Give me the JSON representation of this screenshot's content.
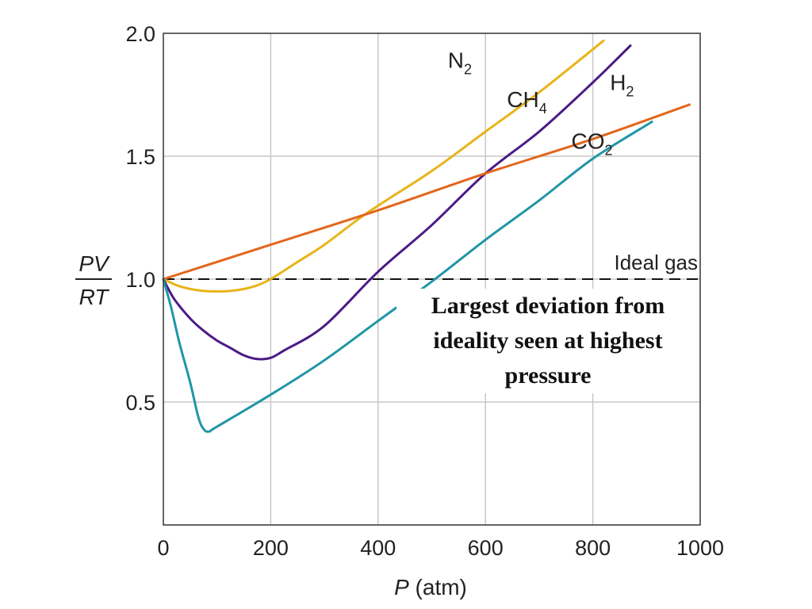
{
  "chart_data": {
    "type": "line",
    "title": "",
    "xlabel": {
      "italic": "P",
      "rest": " (atm)"
    },
    "ylabel": {
      "numerator": "PV",
      "denominator": "RT"
    },
    "xlim": [
      0,
      1000
    ],
    "ylim": [
      0,
      2.0
    ],
    "x_ticks": [
      "0",
      "200",
      "400",
      "600",
      "800",
      "1000"
    ],
    "y_ticks": [
      "0.5",
      "1.0",
      "1.5",
      "2.0"
    ],
    "grid": true,
    "reference_line": {
      "label": "Ideal gas",
      "y": 1.0,
      "style": "dashed"
    },
    "annotation": "Largest deviation from ideality seen at highest pressure",
    "series": [
      {
        "name": "N2",
        "label_main": "N",
        "label_sub": "2",
        "color": "#e8b419",
        "points": [
          [
            0,
            1.0
          ],
          [
            25,
            0.975
          ],
          [
            50,
            0.96
          ],
          [
            75,
            0.952
          ],
          [
            100,
            0.95
          ],
          [
            125,
            0.952
          ],
          [
            150,
            0.96
          ],
          [
            175,
            0.975
          ],
          [
            200,
            1.0
          ],
          [
            250,
            1.07
          ],
          [
            300,
            1.14
          ],
          [
            380,
            1.27
          ],
          [
            500,
            1.44
          ],
          [
            600,
            1.6
          ],
          [
            700,
            1.76
          ],
          [
            820,
            1.97
          ]
        ]
      },
      {
        "name": "CH4",
        "label_main": "CH",
        "label_sub": "4",
        "color": "#4b1a86",
        "points": [
          [
            0,
            1.0
          ],
          [
            20,
            0.92
          ],
          [
            50,
            0.84
          ],
          [
            75,
            0.79
          ],
          [
            100,
            0.75
          ],
          [
            125,
            0.72
          ],
          [
            150,
            0.69
          ],
          [
            175,
            0.675
          ],
          [
            200,
            0.68
          ],
          [
            225,
            0.71
          ],
          [
            300,
            0.81
          ],
          [
            400,
            1.03
          ],
          [
            500,
            1.22
          ],
          [
            600,
            1.43
          ],
          [
            700,
            1.6
          ],
          [
            800,
            1.8
          ],
          [
            870,
            1.95
          ]
        ]
      },
      {
        "name": "H2",
        "label_main": "H",
        "label_sub": "2",
        "color": "#e2661b",
        "points": [
          [
            0,
            1.0
          ],
          [
            200,
            1.14
          ],
          [
            400,
            1.28
          ],
          [
            600,
            1.43
          ],
          [
            800,
            1.57
          ],
          [
            980,
            1.71
          ]
        ]
      },
      {
        "name": "CO2",
        "label_main": "CO",
        "label_sub": "2",
        "color": "#1f96a6",
        "points": [
          [
            0,
            1.0
          ],
          [
            15,
            0.88
          ],
          [
            30,
            0.74
          ],
          [
            50,
            0.58
          ],
          [
            65,
            0.44
          ],
          [
            75,
            0.39
          ],
          [
            85,
            0.38
          ],
          [
            100,
            0.4
          ],
          [
            200,
            0.53
          ],
          [
            300,
            0.67
          ],
          [
            400,
            0.83
          ],
          [
            500,
            0.99
          ],
          [
            600,
            1.16
          ],
          [
            700,
            1.32
          ],
          [
            800,
            1.49
          ],
          [
            910,
            1.64
          ]
        ]
      }
    ]
  }
}
